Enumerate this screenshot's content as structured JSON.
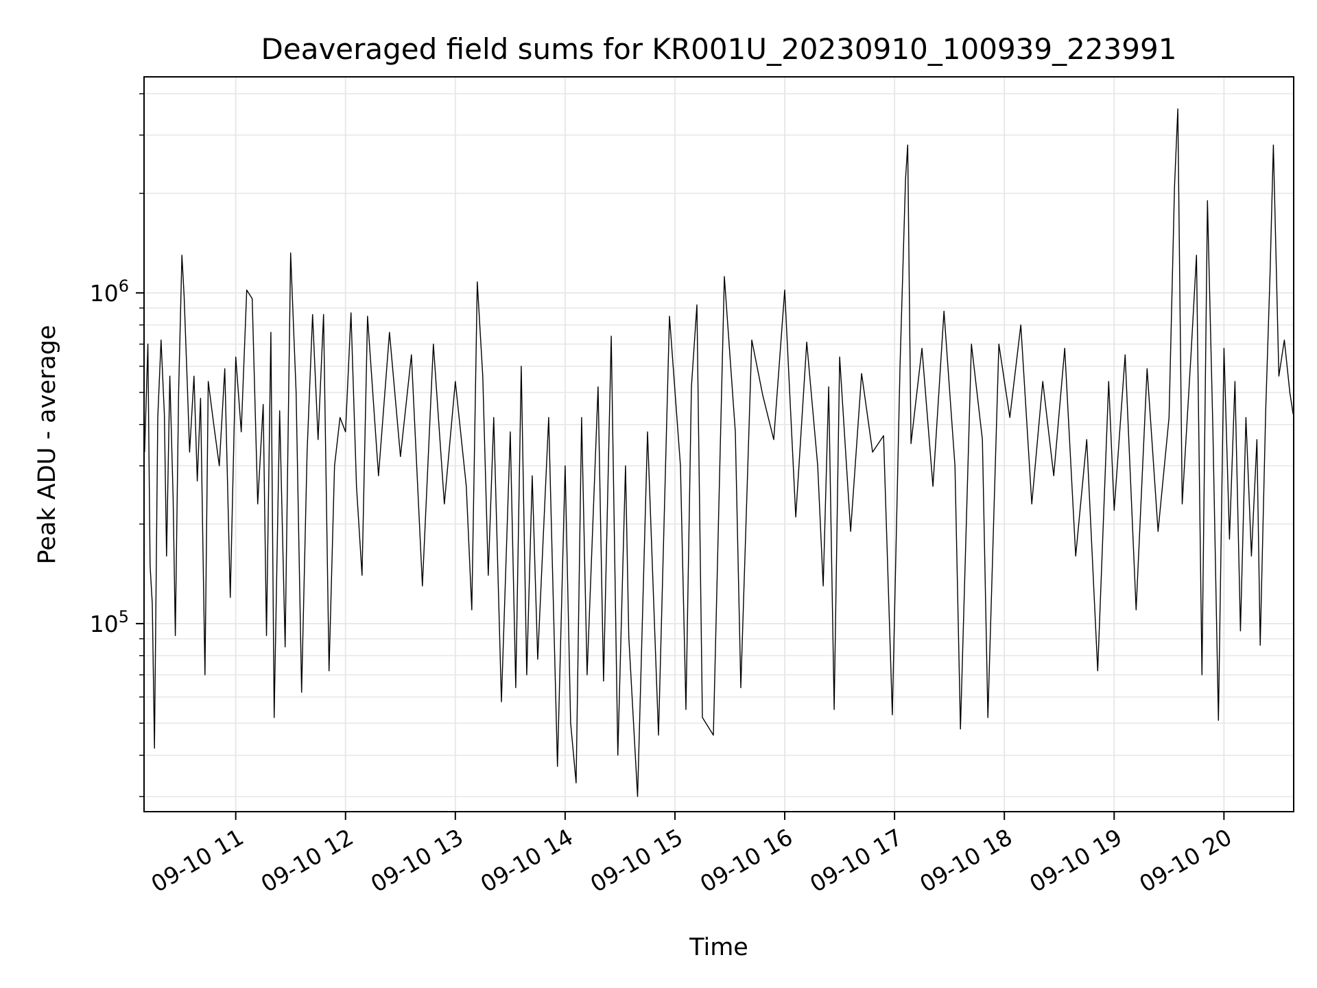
{
  "chart_data": {
    "type": "line",
    "title": "Deaveraged field sums for KR001U_20230910_100939_223991",
    "xlabel": "Time",
    "ylabel": "Peak ADU - average",
    "x_unit": "hour of day on 2023-09-10",
    "xlim": [
      10.165,
      20.635
    ],
    "ylim": [
      27000,
      4500000
    ],
    "yscale": "log",
    "grid": true,
    "legend": "none",
    "line_color": "#000000",
    "grid_color": "#e6e6e6",
    "x_ticks": [
      {
        "value": 11,
        "label": "09-10 11"
      },
      {
        "value": 12,
        "label": "09-10 12"
      },
      {
        "value": 13,
        "label": "09-10 13"
      },
      {
        "value": 14,
        "label": "09-10 14"
      },
      {
        "value": 15,
        "label": "09-10 15"
      },
      {
        "value": 16,
        "label": "09-10 16"
      },
      {
        "value": 17,
        "label": "09-10 17"
      },
      {
        "value": 18,
        "label": "09-10 18"
      },
      {
        "value": 19,
        "label": "09-10 19"
      },
      {
        "value": 20,
        "label": "09-10 20"
      }
    ],
    "y_ticks": [
      {
        "value": 100000,
        "base": "10",
        "exp": "5"
      },
      {
        "value": 1000000,
        "base": "10",
        "exp": "6"
      }
    ],
    "series": [
      {
        "points": [
          [
            10.17,
            330000
          ],
          [
            10.2,
            700000
          ],
          [
            10.22,
            150000
          ],
          [
            10.24,
            115000
          ],
          [
            10.26,
            42000
          ],
          [
            10.29,
            420000
          ],
          [
            10.32,
            720000
          ],
          [
            10.35,
            430000
          ],
          [
            10.37,
            160000
          ],
          [
            10.4,
            560000
          ],
          [
            10.43,
            240000
          ],
          [
            10.45,
            92000
          ],
          [
            10.48,
            500000
          ],
          [
            10.51,
            1300000
          ],
          [
            10.53,
            980000
          ],
          [
            10.56,
            520000
          ],
          [
            10.58,
            330000
          ],
          [
            10.62,
            560000
          ],
          [
            10.65,
            270000
          ],
          [
            10.68,
            480000
          ],
          [
            10.72,
            70000
          ],
          [
            10.75,
            540000
          ],
          [
            10.8,
            400000
          ],
          [
            10.85,
            300000
          ],
          [
            10.9,
            590000
          ],
          [
            10.95,
            120000
          ],
          [
            11.0,
            640000
          ],
          [
            11.05,
            380000
          ],
          [
            11.1,
            1020000
          ],
          [
            11.15,
            960000
          ],
          [
            11.2,
            230000
          ],
          [
            11.25,
            460000
          ],
          [
            11.28,
            92000
          ],
          [
            11.32,
            760000
          ],
          [
            11.35,
            52000
          ],
          [
            11.4,
            440000
          ],
          [
            11.45,
            85000
          ],
          [
            11.5,
            1320000
          ],
          [
            11.55,
            500000
          ],
          [
            11.6,
            62000
          ],
          [
            11.65,
            330000
          ],
          [
            11.7,
            860000
          ],
          [
            11.75,
            360000
          ],
          [
            11.8,
            860000
          ],
          [
            11.85,
            72000
          ],
          [
            11.9,
            300000
          ],
          [
            11.95,
            420000
          ],
          [
            12.0,
            380000
          ],
          [
            12.05,
            870000
          ],
          [
            12.1,
            260000
          ],
          [
            12.15,
            140000
          ],
          [
            12.2,
            850000
          ],
          [
            12.3,
            280000
          ],
          [
            12.4,
            760000
          ],
          [
            12.5,
            320000
          ],
          [
            12.6,
            650000
          ],
          [
            12.7,
            130000
          ],
          [
            12.8,
            700000
          ],
          [
            12.9,
            230000
          ],
          [
            13.0,
            540000
          ],
          [
            13.1,
            260000
          ],
          [
            13.15,
            110000
          ],
          [
            13.2,
            1080000
          ],
          [
            13.25,
            560000
          ],
          [
            13.3,
            140000
          ],
          [
            13.35,
            420000
          ],
          [
            13.42,
            58000
          ],
          [
            13.5,
            380000
          ],
          [
            13.55,
            64000
          ],
          [
            13.6,
            600000
          ],
          [
            13.65,
            70000
          ],
          [
            13.7,
            280000
          ],
          [
            13.75,
            78000
          ],
          [
            13.85,
            420000
          ],
          [
            13.93,
            37000
          ],
          [
            14.0,
            300000
          ],
          [
            14.05,
            50000
          ],
          [
            14.1,
            33000
          ],
          [
            14.15,
            420000
          ],
          [
            14.2,
            70000
          ],
          [
            14.3,
            520000
          ],
          [
            14.35,
            67000
          ],
          [
            14.42,
            740000
          ],
          [
            14.48,
            40000
          ],
          [
            14.55,
            300000
          ],
          [
            14.58,
            91000
          ],
          [
            14.66,
            30000
          ],
          [
            14.75,
            380000
          ],
          [
            14.85,
            46000
          ],
          [
            14.95,
            850000
          ],
          [
            15.05,
            300000
          ],
          [
            15.1,
            55000
          ],
          [
            15.15,
            520000
          ],
          [
            15.2,
            920000
          ],
          [
            15.25,
            52000
          ],
          [
            15.35,
            46000
          ],
          [
            15.45,
            1120000
          ],
          [
            15.55,
            380000
          ],
          [
            15.6,
            64000
          ],
          [
            15.7,
            720000
          ],
          [
            15.8,
            490000
          ],
          [
            15.9,
            360000
          ],
          [
            16.0,
            1020000
          ],
          [
            16.1,
            210000
          ],
          [
            16.2,
            710000
          ],
          [
            16.3,
            300000
          ],
          [
            16.35,
            130000
          ],
          [
            16.4,
            520000
          ],
          [
            16.45,
            55000
          ],
          [
            16.5,
            640000
          ],
          [
            16.6,
            190000
          ],
          [
            16.7,
            570000
          ],
          [
            16.8,
            330000
          ],
          [
            16.9,
            370000
          ],
          [
            16.98,
            53000
          ],
          [
            17.05,
            600000
          ],
          [
            17.1,
            2200000
          ],
          [
            17.12,
            2800000
          ],
          [
            17.15,
            350000
          ],
          [
            17.25,
            680000
          ],
          [
            17.35,
            260000
          ],
          [
            17.45,
            880000
          ],
          [
            17.55,
            300000
          ],
          [
            17.6,
            48000
          ],
          [
            17.7,
            700000
          ],
          [
            17.8,
            360000
          ],
          [
            17.85,
            52000
          ],
          [
            17.95,
            700000
          ],
          [
            18.05,
            420000
          ],
          [
            18.15,
            800000
          ],
          [
            18.25,
            230000
          ],
          [
            18.35,
            540000
          ],
          [
            18.45,
            280000
          ],
          [
            18.55,
            680000
          ],
          [
            18.65,
            160000
          ],
          [
            18.75,
            360000
          ],
          [
            18.85,
            72000
          ],
          [
            18.95,
            540000
          ],
          [
            19.0,
            220000
          ],
          [
            19.1,
            650000
          ],
          [
            19.2,
            110000
          ],
          [
            19.3,
            590000
          ],
          [
            19.4,
            190000
          ],
          [
            19.5,
            420000
          ],
          [
            19.55,
            2100000
          ],
          [
            19.58,
            3600000
          ],
          [
            19.62,
            230000
          ],
          [
            19.7,
            650000
          ],
          [
            19.75,
            1300000
          ],
          [
            19.8,
            70000
          ],
          [
            19.85,
            1900000
          ],
          [
            19.9,
            380000
          ],
          [
            19.95,
            51000
          ],
          [
            20.0,
            680000
          ],
          [
            20.05,
            180000
          ],
          [
            20.1,
            540000
          ],
          [
            20.15,
            95000
          ],
          [
            20.2,
            420000
          ],
          [
            20.25,
            160000
          ],
          [
            20.3,
            360000
          ],
          [
            20.33,
            86000
          ],
          [
            20.38,
            440000
          ],
          [
            20.42,
            1150000
          ],
          [
            20.45,
            2800000
          ],
          [
            20.5,
            560000
          ],
          [
            20.55,
            720000
          ],
          [
            20.6,
            500000
          ],
          [
            20.63,
            430000
          ]
        ]
      }
    ]
  }
}
